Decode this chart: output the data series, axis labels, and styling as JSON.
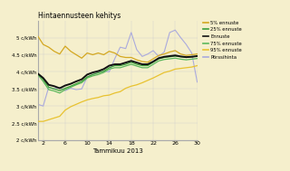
{
  "title": "Hintaennusteen kehitys",
  "xlabel": "Tammikuu 2013",
  "background_color": "#f5efcc",
  "plot_background": "#f5efcc",
  "xlim": [
    1,
    30
  ],
  "ylim": [
    2,
    5.5
  ],
  "xticks": [
    2,
    6,
    10,
    14,
    18,
    22,
    26,
    30
  ],
  "yticks": [
    2,
    2.5,
    3,
    3.5,
    4,
    4.5,
    5
  ],
  "ytick_labels": [
    "2 c/kWh",
    "2.5 c/kWh",
    "3 c/kWh",
    "3.5 c/kWh",
    "4 c/kWh",
    "4.5 c/kWh",
    "5 c/kWh"
  ],
  "legend_labels": [
    "5% ennuste",
    "25% ennuste",
    "Ennuste",
    "75% ennuste",
    "95% ennuste",
    "Pörssihinta"
  ],
  "legend_colors": [
    "#d4a820",
    "#3a9e3a",
    "#111111",
    "#5cb85c",
    "#e8c230",
    "#aaaadd"
  ],
  "x": [
    1,
    2,
    3,
    4,
    5,
    6,
    7,
    8,
    9,
    10,
    11,
    12,
    13,
    14,
    15,
    16,
    17,
    18,
    19,
    20,
    21,
    22,
    23,
    24,
    25,
    26,
    27,
    28,
    29,
    30
  ],
  "line_5pct": [
    5.05,
    4.8,
    4.72,
    4.6,
    4.52,
    4.75,
    4.6,
    4.5,
    4.4,
    4.55,
    4.5,
    4.55,
    4.5,
    4.6,
    4.55,
    4.45,
    4.42,
    4.42,
    4.35,
    4.3,
    4.28,
    4.38,
    4.48,
    4.52,
    4.58,
    4.62,
    4.52,
    4.48,
    4.5,
    4.52
  ],
  "line_25pct": [
    3.95,
    3.78,
    3.55,
    3.5,
    3.45,
    3.52,
    3.58,
    3.65,
    3.72,
    3.85,
    3.92,
    3.97,
    4.02,
    4.12,
    4.18,
    4.18,
    4.22,
    4.28,
    4.22,
    4.18,
    4.18,
    4.28,
    4.38,
    4.42,
    4.44,
    4.46,
    4.44,
    4.42,
    4.44,
    4.46
  ],
  "line_ennuste": [
    3.95,
    3.82,
    3.62,
    3.58,
    3.52,
    3.6,
    3.65,
    3.72,
    3.78,
    3.92,
    3.98,
    4.02,
    4.08,
    4.18,
    4.22,
    4.22,
    4.27,
    4.32,
    4.27,
    4.22,
    4.22,
    4.3,
    4.4,
    4.44,
    4.46,
    4.48,
    4.45,
    4.43,
    4.44,
    4.46
  ],
  "line_75pct": [
    3.92,
    3.72,
    3.48,
    3.44,
    3.38,
    3.48,
    3.55,
    3.62,
    3.68,
    3.82,
    3.88,
    3.92,
    3.98,
    4.08,
    4.12,
    4.12,
    4.17,
    4.22,
    4.17,
    4.12,
    4.12,
    4.22,
    4.32,
    4.36,
    4.38,
    4.4,
    4.37,
    4.35,
    4.37,
    4.39
  ],
  "line_95pct": [
    2.55,
    2.55,
    2.6,
    2.65,
    2.7,
    2.88,
    2.98,
    3.05,
    3.12,
    3.18,
    3.22,
    3.25,
    3.3,
    3.32,
    3.38,
    3.42,
    3.52,
    3.58,
    3.62,
    3.68,
    3.75,
    3.82,
    3.9,
    3.98,
    4.02,
    4.08,
    4.1,
    4.12,
    4.14,
    4.18
  ],
  "line_porssi": [
    3.05,
    3.0,
    3.55,
    3.5,
    3.55,
    3.45,
    3.52,
    3.48,
    3.5,
    3.85,
    3.92,
    3.98,
    4.02,
    4.0,
    4.38,
    4.72,
    4.68,
    5.15,
    4.65,
    4.45,
    4.52,
    4.62,
    4.45,
    4.58,
    5.15,
    5.22,
    5.0,
    4.8,
    4.55,
    3.7
  ]
}
